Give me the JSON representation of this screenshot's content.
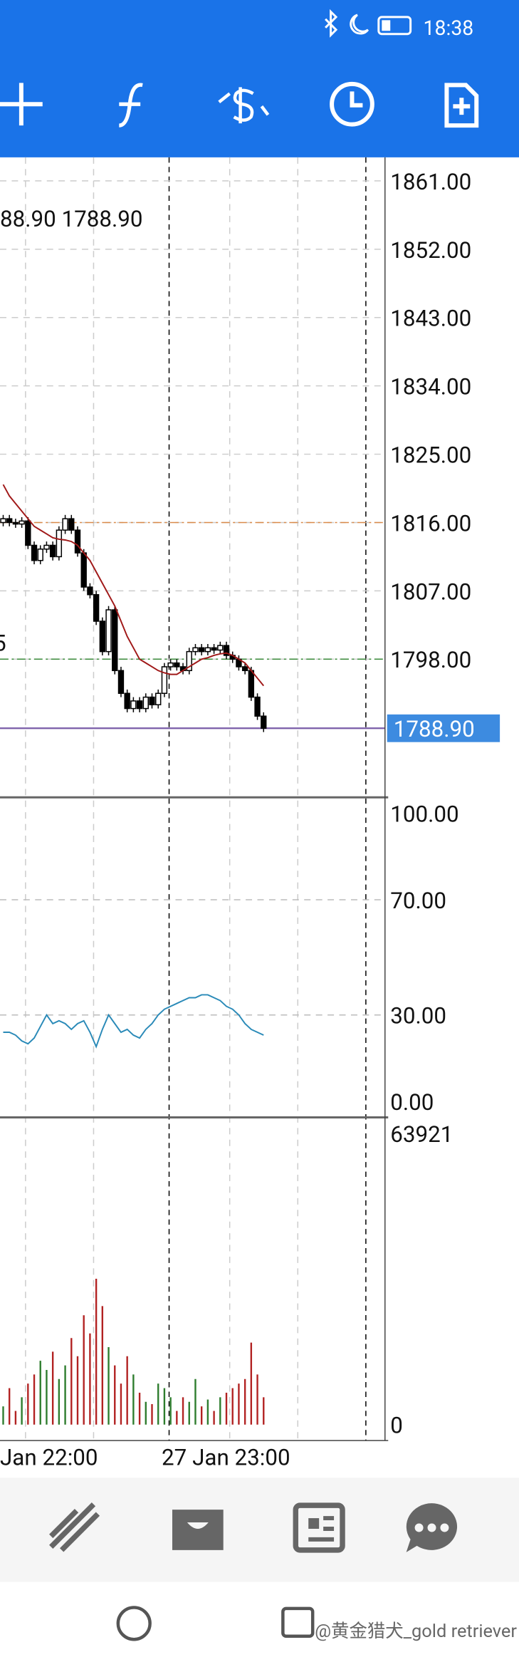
{
  "status": {
    "time": "18:38"
  },
  "chart_data": {
    "type": "candlestick",
    "corner_texts": [
      "88.90 1788.90",
      "5"
    ],
    "ylim": [
      1779.8,
      1864.1
    ],
    "yticks": [
      {
        "value": 1861,
        "label": "1861.00"
      },
      {
        "value": 1852,
        "label": "1852.00"
      },
      {
        "value": 1843,
        "label": "1843.00"
      },
      {
        "value": 1834,
        "label": "1834.00"
      },
      {
        "value": 1825,
        "label": "1825.00"
      },
      {
        "value": 1816,
        "label": "1816.00"
      },
      {
        "value": 1807,
        "label": "1807.00"
      },
      {
        "value": 1798,
        "label": "1798.00"
      }
    ],
    "current_price": {
      "value": 1788.9,
      "label": "1788.90"
    },
    "levels": [
      {
        "value": 1816,
        "color": "#d98a4a"
      },
      {
        "value": 1798,
        "color": "#3a8a3a"
      }
    ],
    "open": [
      1816,
      1816.5,
      1816,
      1815.8,
      1816.2,
      1813,
      1811,
      1812.5,
      1813,
      1811.5,
      1815,
      1816.5,
      1815,
      1812,
      1807.5,
      1806.5,
      1803,
      1799,
      1804.5,
      1796.5,
      1793.5,
      1791.5,
      1792.5,
      1791.5,
      1793,
      1792,
      1793.5,
      1797,
      1797.5,
      1797,
      1796.5,
      1799,
      1799.5,
      1799,
      1799.5,
      1799.2,
      1799.8,
      1798.5,
      1798,
      1797,
      1796.5,
      1793,
      1790.5
    ],
    "high": [
      1817,
      1817,
      1816.5,
      1816.7,
      1816.7,
      1813.5,
      1813,
      1813.5,
      1813.5,
      1815.5,
      1817,
      1817,
      1815.5,
      1812.5,
      1808,
      1807,
      1803.5,
      1805,
      1805,
      1797,
      1794,
      1793,
      1793,
      1793.5,
      1793.5,
      1794,
      1797.5,
      1798,
      1798,
      1797.5,
      1799.5,
      1800,
      1800,
      1800,
      1800,
      1800.3,
      1800.3,
      1799,
      1798.5,
      1797.5,
      1797,
      1793.5,
      1791
    ],
    "low": [
      1815.5,
      1815.5,
      1815.3,
      1815.3,
      1812.5,
      1810.5,
      1810.5,
      1812,
      1811,
      1811,
      1814.5,
      1814.5,
      1811.5,
      1807,
      1806,
      1802.5,
      1798.5,
      1798.5,
      1796,
      1793,
      1791,
      1791,
      1791,
      1791,
      1791.5,
      1791.5,
      1793,
      1796.5,
      1796.5,
      1796,
      1796,
      1798.5,
      1798.5,
      1798.5,
      1798.7,
      1798.7,
      1798,
      1797.5,
      1796.5,
      1796,
      1792.5,
      1790,
      1788.4
    ],
    "close": [
      1816.5,
      1816,
      1815.8,
      1816.2,
      1813,
      1811,
      1812.5,
      1813,
      1811.5,
      1815,
      1816.5,
      1815,
      1812,
      1807.5,
      1806.5,
      1803,
      1799,
      1804.5,
      1796.5,
      1793.5,
      1791.5,
      1792.5,
      1791.5,
      1793,
      1792,
      1793.5,
      1797,
      1797.5,
      1797,
      1796.5,
      1799,
      1799.5,
      1799,
      1799.5,
      1799.2,
      1799.8,
      1798.5,
      1798,
      1797,
      1796.5,
      1793,
      1790.5,
      1788.9
    ],
    "ma": {
      "color": "#a01818",
      "values": [
        1821,
        1819.5,
        1818.5,
        1817.5,
        1816.5,
        1815.5,
        1815,
        1814.5,
        1814,
        1813.8,
        1813.7,
        1813.5,
        1813,
        1812,
        1811,
        1809.5,
        1808,
        1806.5,
        1805,
        1803,
        1801,
        1799.5,
        1798,
        1797.5,
        1797,
        1796.5,
        1796.2,
        1796,
        1796,
        1796.5,
        1797,
        1797.5,
        1798,
        1798.2,
        1798.5,
        1798.7,
        1798.8,
        1798.5,
        1798,
        1797.5,
        1796.5,
        1795.5,
        1794.5
      ]
    },
    "rsi": {
      "color": "#2a8ab8",
      "ylim": [
        0,
        100
      ],
      "yticks": [
        {
          "value": 100,
          "label": "100.00"
        },
        {
          "value": 70,
          "label": "70.00"
        },
        {
          "value": 30,
          "label": "30.00"
        },
        {
          "value": 0,
          "label": "0.00"
        }
      ],
      "values": [
        24,
        24,
        23,
        21,
        20,
        22,
        26,
        30,
        27,
        28,
        27,
        25,
        27,
        28,
        24,
        19,
        25,
        30,
        27,
        24,
        25,
        23,
        22,
        25,
        27,
        30,
        32,
        33,
        34,
        35,
        36,
        36,
        37,
        37,
        36,
        35,
        33,
        32,
        30,
        27,
        25,
        24,
        23
      ]
    },
    "volume": {
      "ylim": [
        0,
        63921
      ],
      "yticks": [
        63921,
        0
      ],
      "up_color": "#2e7d2e",
      "down_color": "#b22222",
      "values": [
        4000,
        8000,
        3000,
        6000,
        9000,
        11000,
        14000,
        12000,
        16000,
        10000,
        13000,
        19000,
        15000,
        24000,
        20000,
        32000,
        26000,
        17000,
        13000,
        9000,
        15000,
        11000,
        7000,
        5000,
        4500,
        9000,
        8000,
        6000,
        3000,
        6000,
        5000,
        10000,
        4000,
        5500,
        3000,
        6000,
        7000,
        8000,
        9000,
        10000,
        18000,
        11000,
        6000
      ]
    },
    "xlabels": [
      "Jan 22:00",
      "27 Jan 23:00"
    ]
  },
  "watermark": "@黄金猎犬_gold retriever"
}
